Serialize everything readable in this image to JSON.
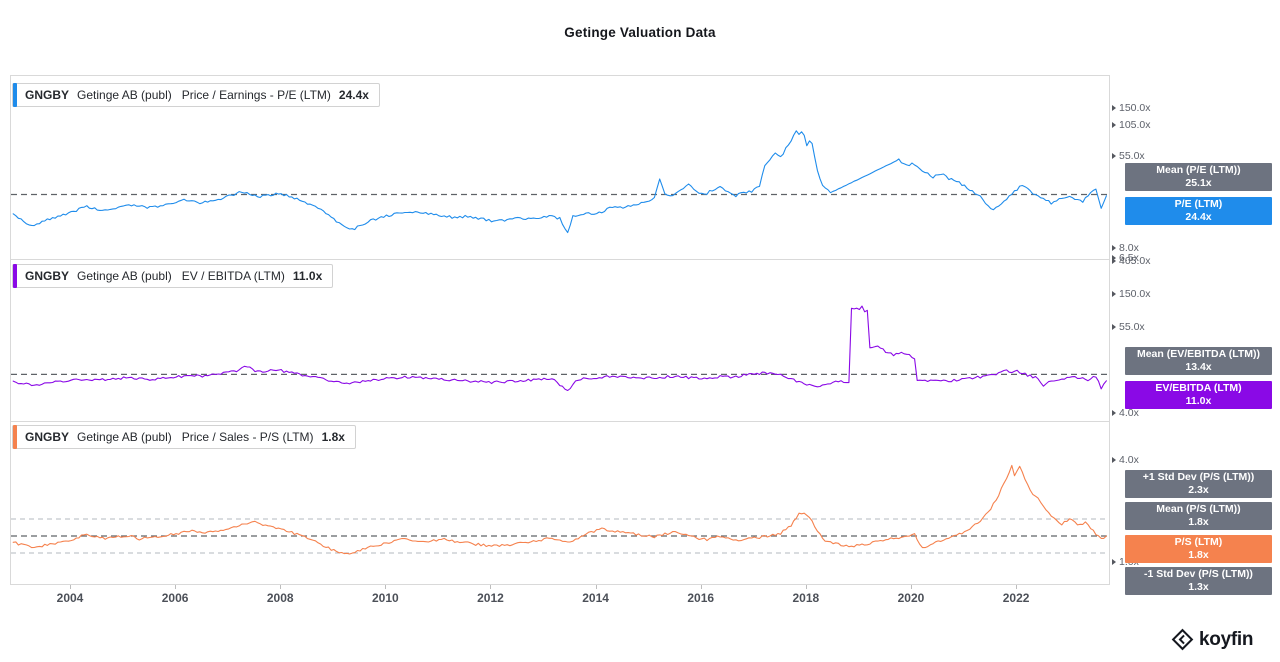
{
  "title": "Getinge Valuation Data",
  "watermark": {
    "brand": "koyfin"
  },
  "colors": {
    "badge_gray": "#6d7380",
    "mean_line": "#5f6368",
    "std_line": "#b3b8bf",
    "frame_border": "#d9d9d9"
  },
  "x_axis_labels": [
    "2004",
    "2006",
    "2008",
    "2010",
    "2012",
    "2014",
    "2016",
    "2018",
    "2020",
    "2022"
  ],
  "chart_data": [
    {
      "type": "line",
      "ticker": "GNGBY",
      "company": "Getinge AB (publ)",
      "metric": "Price / Earnings - P/E (LTM)",
      "current_value": "24.4x",
      "color": "#1f8ceb",
      "scale": "log",
      "mean": 25.1,
      "y_ticks": [
        "150.0x",
        "105.0x",
        "55.0x",
        "8.0x",
        "6.5x"
      ],
      "badges": [
        {
          "label": "Mean (P/E (LTM))",
          "value": "25.1x"
        },
        {
          "label": "P/E (LTM)",
          "value": "24.4x"
        }
      ],
      "x": [
        2002.9,
        2003.0,
        2003.15,
        2003.3,
        2003.5,
        2003.7,
        2003.9,
        2004.1,
        2004.3,
        2004.5,
        2004.7,
        2004.9,
        2005.1,
        2005.3,
        2005.5,
        2005.7,
        2005.9,
        2006.1,
        2006.3,
        2006.5,
        2006.7,
        2006.9,
        2007.1,
        2007.25,
        2007.4,
        2007.6,
        2007.8,
        2008.0,
        2008.2,
        2008.4,
        2008.6,
        2008.8,
        2009.0,
        2009.2,
        2009.35,
        2009.5,
        2009.7,
        2009.9,
        2010.1,
        2010.3,
        2010.5,
        2010.7,
        2010.9,
        2011.1,
        2011.3,
        2011.5,
        2011.7,
        2011.9,
        2012.1,
        2012.3,
        2012.5,
        2012.7,
        2012.9,
        2013.1,
        2013.3,
        2013.45,
        2013.55,
        2013.7,
        2013.9,
        2014.1,
        2014.3,
        2014.5,
        2014.7,
        2014.9,
        2015.1,
        2015.2,
        2015.3,
        2015.45,
        2015.6,
        2015.75,
        2015.9,
        2016.05,
        2016.2,
        2016.35,
        2016.5,
        2016.65,
        2016.8,
        2016.95,
        2017.1,
        2017.2,
        2017.3,
        2017.4,
        2017.5,
        2017.6,
        2017.7,
        2017.8,
        2017.85,
        2017.9,
        2017.95,
        2018.0,
        2018.05,
        2018.1,
        2018.2,
        2018.3,
        2018.45,
        2019.75,
        2019.9,
        2020.0,
        2020.1,
        2020.25,
        2020.4,
        2020.55,
        2020.7,
        2020.85,
        2021.0,
        2021.15,
        2021.3,
        2021.45,
        2021.55,
        2021.7,
        2021.85,
        2022.0,
        2022.1,
        2022.2,
        2022.35,
        2022.5,
        2022.65,
        2022.8,
        2022.95,
        2023.1,
        2023.25,
        2023.4,
        2023.5,
        2023.6,
        2023.7
      ],
      "values": [
        16.5,
        15.2,
        13.8,
        13.2,
        14.5,
        15.5,
        16.5,
        18,
        19.5,
        18.5,
        18,
        19,
        20.5,
        19.5,
        19,
        20,
        21,
        22.5,
        21.5,
        21,
        22,
        23.5,
        25,
        26.5,
        25,
        24,
        25,
        25.5,
        23.5,
        22,
        20,
        17.5,
        15,
        13,
        12,
        13,
        14.5,
        15.5,
        16.5,
        17,
        17.5,
        17,
        16.5,
        16,
        15.5,
        15.8,
        15.2,
        14.8,
        14.3,
        14.8,
        15.2,
        15,
        15.5,
        16,
        15.2,
        11.2,
        15.8,
        16.5,
        16.8,
        17.5,
        19.5,
        19,
        20,
        21.5,
        23,
        34,
        26,
        24,
        28,
        31,
        27,
        25,
        27.5,
        29,
        26,
        24.5,
        26,
        27,
        30,
        45,
        52,
        60,
        55,
        65,
        76,
        95,
        88,
        93,
        85,
        70,
        76,
        72,
        42,
        30,
        26,
        52,
        46,
        48,
        45,
        40,
        36,
        39,
        35,
        33,
        30,
        27,
        24,
        20,
        18,
        21,
        24,
        28,
        31,
        28,
        25,
        23.5,
        21,
        22.5,
        24,
        23,
        21.5,
        26,
        28,
        19,
        24.4
      ]
    },
    {
      "type": "line",
      "ticker": "GNGBY",
      "company": "Getinge AB (publ)",
      "metric": "EV / EBITDA (LTM)",
      "current_value": "11.0x",
      "color": "#8a09e6",
      "scale": "log",
      "mean": 13.4,
      "y_ticks": [
        "405.0x",
        "150.0x",
        "55.0x",
        "4.0x"
      ],
      "badges": [
        {
          "label": "Mean (EV/EBITDA (LTM))",
          "value": "13.4x"
        },
        {
          "label": "EV/EBITDA (LTM)",
          "value": "11.0x"
        }
      ],
      "x": [
        2002.9,
        2003.1,
        2003.3,
        2003.5,
        2003.7,
        2003.9,
        2004.1,
        2004.3,
        2004.5,
        2004.7,
        2004.9,
        2005.1,
        2005.3,
        2005.5,
        2005.7,
        2005.9,
        2006.1,
        2006.3,
        2006.5,
        2006.7,
        2006.9,
        2007.1,
        2007.25,
        2007.35,
        2007.5,
        2007.65,
        2007.8,
        2008.0,
        2008.2,
        2008.4,
        2008.6,
        2008.8,
        2009.0,
        2009.2,
        2009.4,
        2009.6,
        2009.8,
        2010.0,
        2010.2,
        2010.4,
        2010.6,
        2010.8,
        2011.0,
        2011.2,
        2011.4,
        2011.6,
        2011.8,
        2012.0,
        2012.2,
        2012.4,
        2012.6,
        2012.8,
        2013.0,
        2013.2,
        2013.45,
        2013.6,
        2013.8,
        2014.0,
        2014.2,
        2014.4,
        2014.6,
        2014.8,
        2015.0,
        2015.2,
        2015.4,
        2015.6,
        2015.8,
        2016.0,
        2016.2,
        2016.4,
        2016.6,
        2016.8,
        2017.0,
        2017.2,
        2017.4,
        2017.6,
        2017.8,
        2018.0,
        2018.15,
        2018.3,
        2018.5,
        2018.65,
        2018.8,
        2018.85,
        2018.9,
        2018.95,
        2019.0,
        2019.05,
        2019.1,
        2019.15,
        2019.2,
        2019.35,
        2019.5,
        2019.65,
        2019.8,
        2019.95,
        2020.05,
        2020.1,
        2020.25,
        2020.4,
        2020.55,
        2020.7,
        2020.85,
        2021.0,
        2021.2,
        2021.4,
        2021.6,
        2021.8,
        2021.9,
        2022.0,
        2022.1,
        2022.25,
        2022.4,
        2022.5,
        2022.6,
        2022.75,
        2022.9,
        2023.05,
        2023.2,
        2023.35,
        2023.5,
        2023.6,
        2023.7
      ],
      "values": [
        10.8,
        10,
        9.6,
        10.2,
        10.6,
        10.9,
        11.2,
        11.5,
        11.2,
        11.6,
        11.9,
        12.1,
        11.8,
        11.5,
        11.9,
        12.2,
        12.6,
        12.9,
        12.7,
        13.2,
        13.8,
        14.6,
        16,
        17,
        15,
        14.5,
        15.2,
        15,
        14,
        13.2,
        12.4,
        11.6,
        10.8,
        10.1,
        10.4,
        10.9,
        11.3,
        11.8,
        12.1,
        12.4,
        12.2,
        11.9,
        11.6,
        11.3,
        11.1,
        10.9,
        10.7,
        10.5,
        10.7,
        10.9,
        11.1,
        11.3,
        11.5,
        11.2,
        8.0,
        11.4,
        11.8,
        12.1,
        12.4,
        12.6,
        12.4,
        12.2,
        12.0,
        12.3,
        12.5,
        12.3,
        12.1,
        11.9,
        12.2,
        12.5,
        12.3,
        13.0,
        13.5,
        14.0,
        13.4,
        12.6,
        11.0,
        10.0,
        9.2,
        9.8,
        10.4,
        10.8,
        10.5,
        100,
        96,
        104,
        100,
        107,
        92,
        98,
        30,
        31,
        27,
        24,
        25.5,
        24.5,
        22,
        11.5,
        11.0,
        11.4,
        11.2,
        11.0,
        11.3,
        11.8,
        12.2,
        12.6,
        13.4,
        15.0,
        14.4,
        14.8,
        13.8,
        12.8,
        11.8,
        9.6,
        10.8,
        11.4,
        12.0,
        12.4,
        11.8,
        11.4,
        12.6,
        8.8,
        11.0
      ]
    },
    {
      "type": "line",
      "ticker": "GNGBY",
      "company": "Getinge AB (publ)",
      "metric": "Price / Sales - P/S (LTM)",
      "current_value": "1.8x",
      "color": "#f5824e",
      "scale": "linear",
      "mean": 1.8,
      "std_dev_plus": 2.3,
      "std_dev_minus": 1.3,
      "y_ticks": [
        "4.0x",
        "1.0x"
      ],
      "badges": [
        {
          "label": "+1 Std Dev (P/S (LTM))",
          "value": "2.3x"
        },
        {
          "label": "Mean (P/S (LTM))",
          "value": "1.8x"
        },
        {
          "label": "P/S (LTM)",
          "value": "1.8x"
        },
        {
          "label": "-1 Std Dev (P/S (LTM))",
          "value": "1.3x"
        }
      ],
      "x": [
        2002.9,
        2003.1,
        2003.3,
        2003.5,
        2003.7,
        2003.9,
        2004.1,
        2004.3,
        2004.5,
        2004.7,
        2004.9,
        2005.1,
        2005.3,
        2005.5,
        2005.7,
        2005.9,
        2006.1,
        2006.3,
        2006.5,
        2006.7,
        2006.9,
        2007.1,
        2007.3,
        2007.5,
        2007.7,
        2007.9,
        2008.1,
        2008.3,
        2008.5,
        2008.7,
        2008.9,
        2009.1,
        2009.3,
        2009.5,
        2009.7,
        2009.9,
        2010.1,
        2010.3,
        2010.5,
        2010.7,
        2010.9,
        2011.1,
        2011.3,
        2011.5,
        2011.7,
        2011.9,
        2012.1,
        2012.3,
        2012.5,
        2012.7,
        2012.9,
        2013.1,
        2013.3,
        2013.5,
        2013.7,
        2013.9,
        2014.1,
        2014.3,
        2014.5,
        2014.7,
        2014.9,
        2015.1,
        2015.3,
        2015.5,
        2015.7,
        2015.9,
        2016.1,
        2016.3,
        2016.5,
        2016.7,
        2016.9,
        2017.1,
        2017.3,
        2017.5,
        2017.7,
        2017.85,
        2017.95,
        2018.05,
        2018.2,
        2018.35,
        2018.5,
        2018.7,
        2018.9,
        2019.1,
        2019.3,
        2019.5,
        2019.7,
        2019.9,
        2020.05,
        2020.2,
        2020.35,
        2020.5,
        2020.7,
        2020.9,
        2021.1,
        2021.3,
        2021.5,
        2021.65,
        2021.8,
        2021.9,
        2021.95,
        2022.05,
        2022.15,
        2022.3,
        2022.45,
        2022.55,
        2022.7,
        2022.85,
        2023.0,
        2023.15,
        2023.3,
        2023.45,
        2023.6,
        2023.7
      ],
      "values": [
        1.62,
        1.52,
        1.47,
        1.53,
        1.58,
        1.65,
        1.74,
        1.85,
        1.78,
        1.72,
        1.78,
        1.82,
        1.72,
        1.75,
        1.8,
        1.84,
        1.9,
        1.96,
        1.88,
        1.92,
        1.98,
        2.05,
        2.15,
        2.2,
        2.12,
        2.05,
        1.95,
        1.85,
        1.75,
        1.6,
        1.45,
        1.3,
        1.26,
        1.38,
        1.48,
        1.55,
        1.62,
        1.7,
        1.66,
        1.62,
        1.68,
        1.7,
        1.64,
        1.6,
        1.56,
        1.52,
        1.5,
        1.54,
        1.58,
        1.62,
        1.68,
        1.72,
        1.66,
        1.62,
        1.78,
        1.92,
        2.0,
        1.95,
        1.9,
        1.86,
        1.82,
        1.78,
        1.86,
        1.92,
        1.82,
        1.74,
        1.7,
        1.78,
        1.72,
        1.68,
        1.72,
        1.76,
        1.82,
        1.88,
        2.1,
        2.45,
        2.5,
        2.35,
        1.95,
        1.65,
        1.58,
        1.52,
        1.5,
        1.56,
        1.62,
        1.68,
        1.74,
        1.8,
        1.84,
        1.45,
        1.56,
        1.65,
        1.74,
        1.85,
        2.0,
        2.25,
        2.6,
        3.0,
        3.5,
        3.9,
        3.6,
        3.85,
        3.45,
        3.05,
        2.8,
        2.55,
        2.35,
        2.15,
        2.3,
        2.12,
        2.2,
        1.95,
        1.72,
        1.8
      ]
    }
  ]
}
